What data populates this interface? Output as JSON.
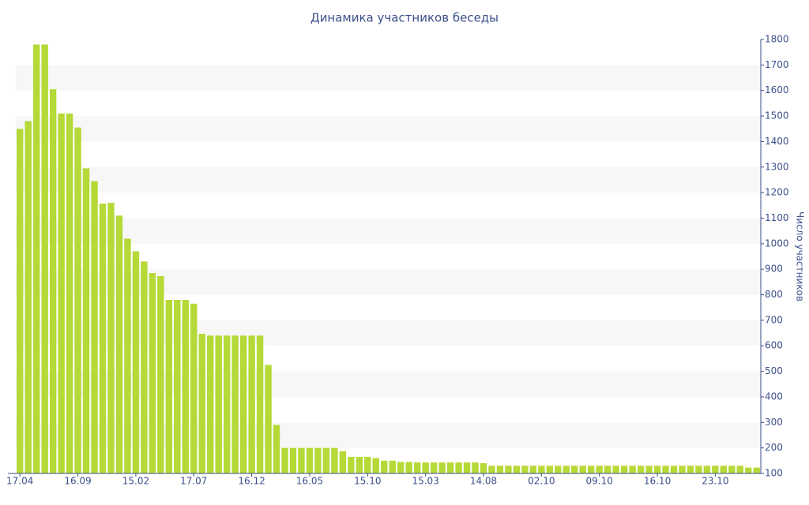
{
  "chart_data": {
    "type": "bar",
    "title": "Динамика участников беседы",
    "y_label": "Число участников",
    "color": "#b5d936",
    "band_color": "#f7f7f7",
    "categories": [
      "17.04",
      null,
      null,
      null,
      null,
      null,
      null,
      "16.09",
      null,
      null,
      null,
      null,
      null,
      null,
      "15.02",
      null,
      null,
      null,
      null,
      null,
      null,
      "17.07",
      null,
      null,
      null,
      null,
      null,
      null,
      "16.12",
      null,
      null,
      null,
      null,
      null,
      null,
      "16.05",
      null,
      null,
      null,
      null,
      null,
      null,
      "15.10",
      null,
      null,
      null,
      null,
      null,
      null,
      "15.03",
      null,
      null,
      null,
      null,
      null,
      null,
      "14.08",
      null,
      null,
      null,
      null,
      null,
      null,
      "02.10",
      null,
      null,
      null,
      null,
      null,
      null,
      "09.10",
      null,
      null,
      null,
      null,
      null,
      null,
      "16.10",
      null,
      null,
      null,
      null,
      null,
      null,
      "23.10",
      null,
      null,
      null,
      null,
      null
    ],
    "values": [
      1450,
      1480,
      1780,
      1780,
      1605,
      1510,
      1510,
      1455,
      1295,
      1245,
      1157,
      1160,
      1110,
      1020,
      970,
      930,
      885,
      873,
      780,
      780,
      780,
      765,
      647,
      640,
      640,
      640,
      640,
      640,
      640,
      640,
      525,
      290,
      200,
      200,
      200,
      200,
      200,
      200,
      200,
      187,
      165,
      165,
      165,
      160,
      150,
      150,
      145,
      145,
      143,
      143,
      143,
      143,
      143,
      143,
      143,
      143,
      140,
      130,
      130,
      130,
      130,
      130,
      130,
      130,
      130,
      130,
      130,
      130,
      130,
      130,
      130,
      130,
      130,
      130,
      130,
      130,
      130,
      130,
      130,
      130,
      130,
      130,
      130,
      130,
      130,
      130,
      130,
      130,
      123,
      123
    ],
    "ylim": [
      100,
      1800
    ],
    "yticks": [
      100,
      200,
      300,
      400,
      500,
      600,
      700,
      800,
      900,
      1000,
      1100,
      1200,
      1300,
      1400,
      1500,
      1600,
      1700,
      1800
    ],
    "y_axis_side": "right",
    "banded_grid": true
  }
}
